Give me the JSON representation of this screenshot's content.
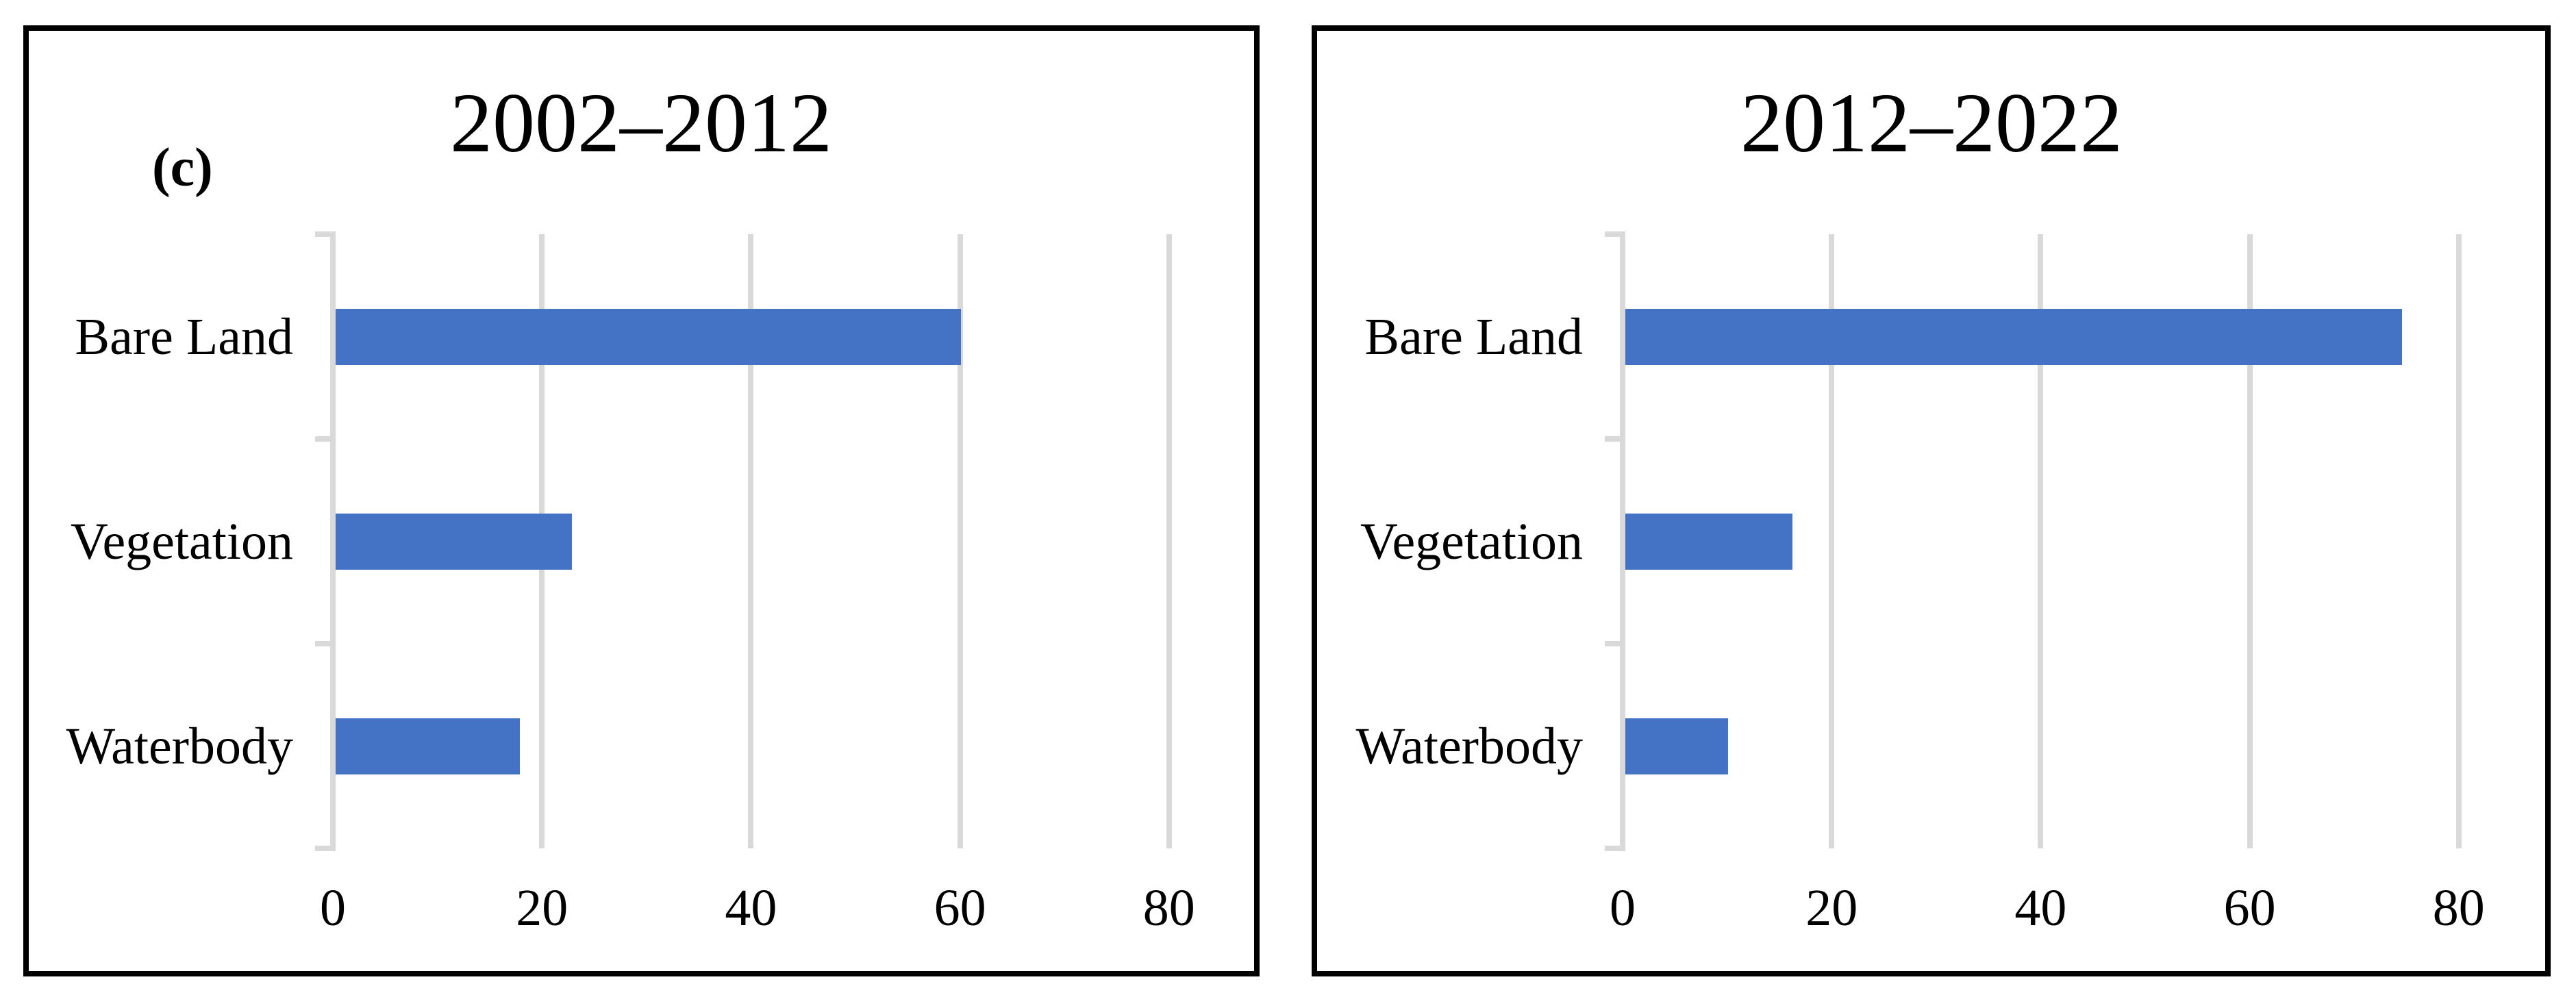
{
  "figure_label": "(c)",
  "colors": {
    "bar": "#4472c4",
    "gridline": "#d9d9d9",
    "panel_border": "#000000",
    "background": "#ffffff",
    "text": "#000000"
  },
  "chart_data": [
    {
      "type": "bar",
      "orientation": "horizontal",
      "title": "2002–2012",
      "categories": [
        "Bare Land",
        "Vegetation",
        "Waterbody"
      ],
      "values": [
        59.8,
        22.6,
        17.6
      ],
      "x_ticks": [
        0,
        20,
        40,
        60,
        80
      ],
      "xlim": [
        0,
        80
      ],
      "xlabel": "",
      "ylabel": "",
      "grid": "vertical gridlines on",
      "legend": "none"
    },
    {
      "type": "bar",
      "orientation": "horizontal",
      "title": "2012–2022",
      "categories": [
        "Bare Land",
        "Vegetation",
        "Waterbody"
      ],
      "values": [
        74.3,
        16.0,
        9.8
      ],
      "x_ticks": [
        0,
        20,
        40,
        60,
        80
      ],
      "xlim": [
        0,
        80
      ],
      "xlabel": "",
      "ylabel": "",
      "grid": "vertical gridlines on",
      "legend": "none"
    }
  ]
}
